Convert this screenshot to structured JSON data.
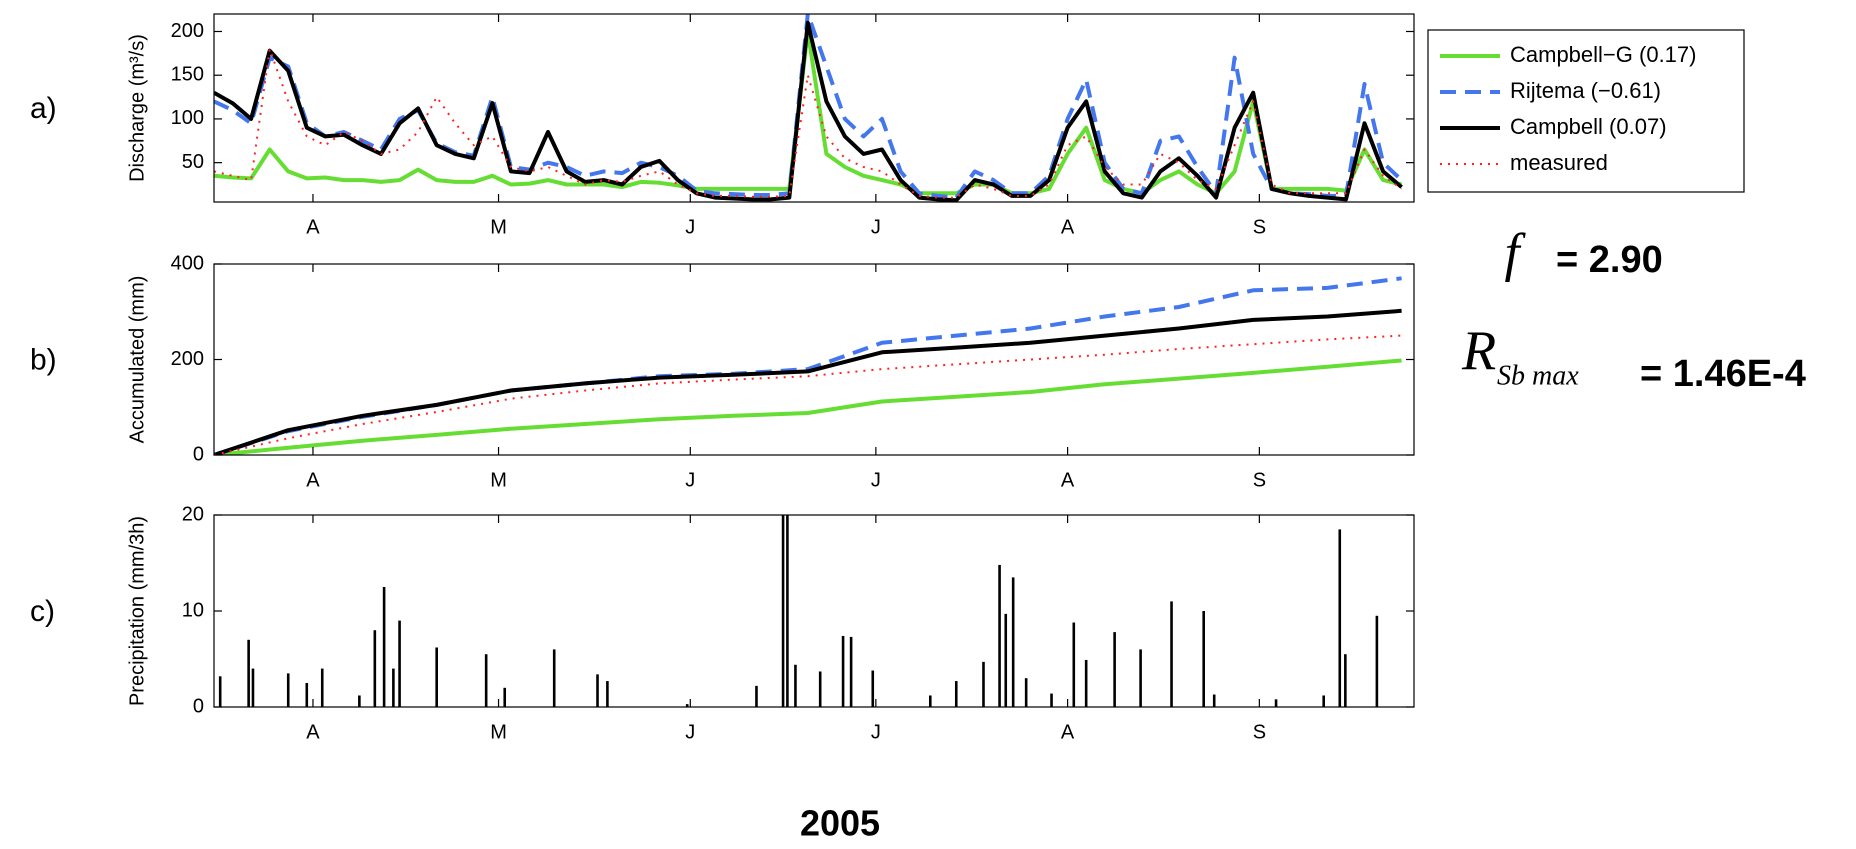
{
  "chart_data": [
    {
      "type": "line",
      "panel_label": "a)",
      "ylabel": "Discharge (m³/s)",
      "xlim": [
        0,
        194
      ],
      "ylim": [
        5,
        220
      ],
      "yticks": [
        50,
        100,
        150,
        200
      ],
      "xticks": [
        {
          "value": 16,
          "label": "A"
        },
        {
          "value": 46,
          "label": "M"
        },
        {
          "value": 77,
          "label": "J"
        },
        {
          "value": 107,
          "label": "J"
        },
        {
          "value": 138,
          "label": "A"
        },
        {
          "value": 169,
          "label": "S"
        }
      ],
      "legend": "outside right",
      "x": [
        0,
        3,
        6,
        9,
        12,
        15,
        18,
        21,
        24,
        27,
        30,
        33,
        36,
        39,
        42,
        45,
        48,
        51,
        54,
        57,
        60,
        63,
        66,
        69,
        72,
        75,
        78,
        81,
        84,
        87,
        90,
        93,
        96,
        99,
        102,
        105,
        108,
        111,
        114,
        117,
        120,
        123,
        126,
        129,
        132,
        135,
        138,
        141,
        144,
        147,
        150,
        153,
        156,
        159,
        162,
        165,
        168,
        171,
        174,
        177,
        180,
        183,
        186,
        189,
        192
      ],
      "series": [
        {
          "name": "Campbell−G (0.17)",
          "color": "#66dd33",
          "line_style": "solid",
          "values": [
            35,
            33,
            32,
            65,
            40,
            32,
            33,
            30,
            30,
            28,
            30,
            42,
            30,
            28,
            28,
            35,
            25,
            26,
            30,
            25,
            25,
            25,
            22,
            28,
            27,
            24,
            20,
            20,
            20,
            20,
            20,
            20,
            200,
            60,
            45,
            35,
            30,
            25,
            15,
            15,
            15,
            25,
            25,
            15,
            15,
            20,
            60,
            90,
            30,
            20,
            15,
            30,
            40,
            25,
            15,
            40,
            120,
            20,
            20,
            20,
            20,
            18,
            65,
            30,
            25
          ]
        },
        {
          "name": "Rijtema (−0.61)",
          "color": "#4477ee",
          "line_style": "dashed",
          "values": [
            120,
            110,
            95,
            170,
            160,
            95,
            80,
            85,
            75,
            65,
            100,
            110,
            72,
            62,
            58,
            125,
            45,
            42,
            50,
            45,
            35,
            40,
            38,
            50,
            45,
            35,
            18,
            15,
            14,
            13,
            13,
            15,
            220,
            160,
            100,
            80,
            100,
            40,
            15,
            12,
            10,
            40,
            30,
            15,
            15,
            35,
            100,
            145,
            50,
            20,
            15,
            75,
            80,
            45,
            15,
            170,
            60,
            20,
            15,
            14,
            12,
            12,
            140,
            50,
            30
          ]
        },
        {
          "name": "Campbell (0.07)",
          "color": "#000000",
          "line_style": "solid",
          "values": [
            130,
            118,
            100,
            178,
            155,
            90,
            80,
            82,
            70,
            60,
            95,
            112,
            70,
            60,
            55,
            118,
            40,
            38,
            85,
            40,
            28,
            30,
            25,
            45,
            52,
            30,
            15,
            10,
            9,
            8,
            8,
            10,
            210,
            120,
            80,
            60,
            65,
            30,
            10,
            8,
            7,
            30,
            25,
            12,
            12,
            30,
            90,
            120,
            40,
            15,
            10,
            40,
            55,
            35,
            10,
            90,
            130,
            20,
            15,
            12,
            10,
            8,
            95,
            40,
            22
          ]
        },
        {
          "name": "measured",
          "color": "#ff2222",
          "line_style": "dotted",
          "values": [
            40,
            35,
            30,
            180,
            120,
            80,
            70,
            85,
            75,
            60,
            65,
            85,
            125,
            95,
            70,
            80,
            45,
            40,
            45,
            35,
            25,
            30,
            28,
            35,
            40,
            25,
            15,
            12,
            12,
            11,
            11,
            12,
            150,
            80,
            55,
            45,
            40,
            25,
            12,
            10,
            10,
            25,
            20,
            12,
            12,
            25,
            70,
            80,
            45,
            25,
            25,
            60,
            50,
            30,
            20,
            70,
            120,
            25,
            15,
            15,
            15,
            15,
            65,
            35,
            20
          ]
        }
      ]
    },
    {
      "type": "line",
      "panel_label": "b)",
      "ylabel": "Accumulated (mm)",
      "xlim": [
        0,
        194
      ],
      "ylim": [
        0,
        400
      ],
      "yticks": [
        0,
        200,
        400
      ],
      "xticks": [
        {
          "value": 16,
          "label": "A"
        },
        {
          "value": 46,
          "label": "M"
        },
        {
          "value": 77,
          "label": "J"
        },
        {
          "value": 107,
          "label": "J"
        },
        {
          "value": 138,
          "label": "A"
        },
        {
          "value": 169,
          "label": "S"
        }
      ],
      "x": [
        0,
        12,
        24,
        36,
        48,
        60,
        72,
        84,
        96,
        108,
        120,
        132,
        144,
        156,
        168,
        180,
        192
      ],
      "series": [
        {
          "color": "#66dd33",
          "line_style": "solid",
          "values": [
            0,
            15,
            30,
            42,
            55,
            65,
            75,
            82,
            88,
            112,
            122,
            132,
            148,
            160,
            172,
            185,
            198
          ]
        },
        {
          "color": "#4477ee",
          "line_style": "dashed",
          "values": [
            0,
            50,
            80,
            105,
            135,
            150,
            165,
            170,
            180,
            235,
            250,
            265,
            290,
            310,
            345,
            350,
            370
          ]
        },
        {
          "color": "#000000",
          "line_style": "solid",
          "values": [
            0,
            52,
            82,
            105,
            135,
            150,
            162,
            168,
            175,
            215,
            225,
            235,
            250,
            265,
            283,
            290,
            302
          ]
        },
        {
          "color": "#ff2222",
          "line_style": "dotted",
          "values": [
            0,
            35,
            65,
            90,
            118,
            135,
            150,
            158,
            165,
            180,
            190,
            200,
            210,
            222,
            232,
            242,
            250
          ]
        }
      ]
    },
    {
      "type": "bar",
      "panel_label": "c)",
      "ylabel": "Precipitation (mm/3h)",
      "xlim": [
        0,
        194
      ],
      "ylim": [
        0,
        20
      ],
      "yticks": [
        0,
        10,
        20
      ],
      "xticks": [
        {
          "value": 16,
          "label": "A"
        },
        {
          "value": 46,
          "label": "M"
        },
        {
          "value": 77,
          "label": "J"
        },
        {
          "value": 107,
          "label": "J"
        },
        {
          "value": 138,
          "label": "A"
        },
        {
          "value": 169,
          "label": "S"
        }
      ],
      "color": "#000000",
      "x": [
        1,
        5.6,
        6.3,
        12,
        15,
        17.5,
        23.5,
        26,
        27.5,
        29,
        30,
        36,
        44,
        47,
        55,
        62,
        63.6,
        76.5,
        87.7,
        92,
        92.7,
        94,
        98,
        101.7,
        103,
        106.5,
        115.8,
        120,
        124.4,
        127,
        128,
        129.2,
        131.3,
        135.4,
        139,
        141,
        145.6,
        149.8,
        154.8,
        160,
        161.7,
        171.7,
        179.4,
        182,
        182.9,
        188
      ],
      "values": [
        3.2,
        7,
        4,
        3.5,
        2.5,
        4,
        1.2,
        8,
        12.5,
        4,
        9,
        6.2,
        5.5,
        2,
        6,
        3.4,
        2.7,
        0.3,
        2.2,
        20,
        20,
        4.4,
        3.7,
        7.4,
        7.3,
        3.8,
        1.2,
        2.7,
        4.7,
        14.8,
        9.7,
        13.5,
        3,
        1.4,
        8.8,
        4.9,
        7.8,
        6,
        11,
        10,
        1.3,
        0.8,
        1.2,
        18.5,
        5.5,
        9.5
      ]
    }
  ],
  "xlabel": "2005",
  "annotations": {
    "f_symbol": "f",
    "f_value": "= 2.90",
    "r_symbol": "R",
    "r_subscript": "Sb max",
    "r_value": "= 1.46E-4"
  }
}
